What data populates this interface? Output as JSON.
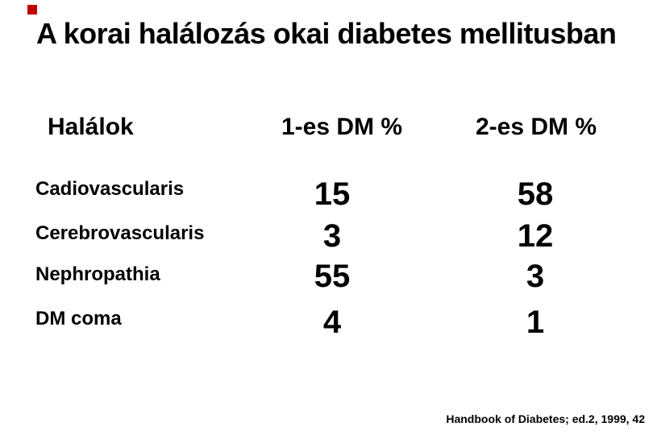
{
  "slide": {
    "title": "A korai halálozás okai diabetes mellitusban",
    "background_color": "#ffffff",
    "text_color": "#000000",
    "accent_color": "#c00000"
  },
  "table": {
    "headers": {
      "cause": "Halálok",
      "dm1": "1-es DM %",
      "dm2": "2-es DM %"
    },
    "rows": [
      {
        "label": "Cadiovascularis",
        "dm1": "15",
        "dm2": "58"
      },
      {
        "label": "Cerebrovascularis",
        "dm1": "3",
        "dm2": "12"
      },
      {
        "label": "Nephropathia",
        "dm1": "55",
        "dm2": "3"
      },
      {
        "label": "DM coma",
        "dm1": "4",
        "dm2": "1"
      }
    ]
  },
  "footer": {
    "citation": "Handbook of Diabetes; ed.2, 1999, 42"
  }
}
